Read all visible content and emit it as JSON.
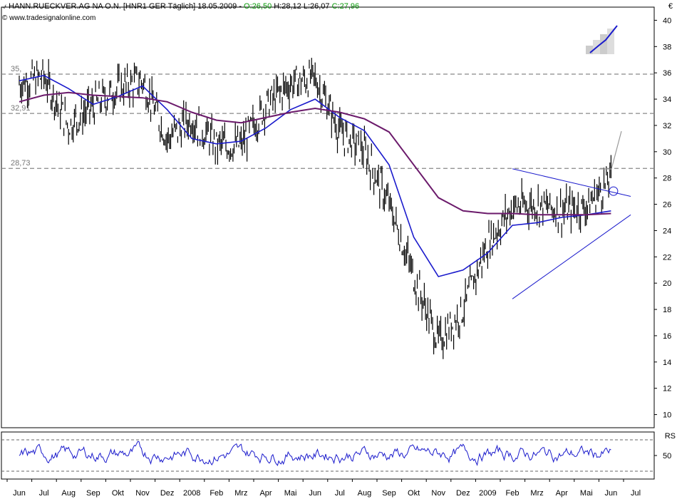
{
  "header": {
    "title": "HANN.RUECKVER.AG NA O.N. [HNR1 GER  Täglich] 18.05.2009 - ",
    "ohlc_open": "O:26,50",
    "ohlc_high": " H:28,12",
    "ohlc_low": " L:26,07",
    "ohlc_close": " C:27,96",
    "source": "www.tradesignalonline.com",
    "currency": "€",
    "lower_panel_label": "RS"
  },
  "colors": {
    "price": "#000000",
    "ma_short": "#1a1acc",
    "ma_long": "#6b1a6b",
    "support_lines": "#888888",
    "trend_lines": "#1a1acc",
    "ohlc_highlight": "#0a9a0a"
  },
  "chart_data": [
    {
      "type": "line",
      "name": "price",
      "y_axis_ticks": [
        10,
        12,
        14,
        16,
        18,
        20,
        22,
        24,
        26,
        28,
        30,
        32,
        34,
        36,
        38,
        40
      ],
      "ylim": [
        9,
        41
      ],
      "x_months": [
        "Jun",
        "Jul",
        "Aug",
        "Sep",
        "Okt",
        "Nov",
        "Dez",
        "2008",
        "Feb",
        "Mrz",
        "Apr",
        "Mai",
        "Jun",
        "Jul",
        "Aug",
        "Sep",
        "Okt",
        "Nov",
        "Dez",
        "2009",
        "Feb",
        "Mrz",
        "Apr",
        "Mai",
        "Jun",
        "Jul"
      ],
      "horizontal_levels": [
        {
          "value": 35.9,
          "label": "35,"
        },
        {
          "value": 32.91,
          "label": "32,91"
        },
        {
          "value": 28.73,
          "label": "28,73"
        }
      ],
      "series": [
        {
          "name": "price",
          "x": [
            0,
            1,
            2,
            3,
            4,
            5,
            6,
            7,
            8,
            9,
            10,
            11,
            12,
            13,
            14,
            15,
            16,
            17,
            18,
            19,
            20,
            21,
            22,
            23,
            24
          ],
          "values": [
            35.2,
            35.7,
            32.0,
            33.5,
            34.8,
            35.4,
            31.0,
            32.5,
            30.5,
            30.5,
            33.5,
            35.2,
            35.6,
            31.5,
            30.0,
            26.0,
            20.5,
            15.5,
            18.0,
            23.0,
            25.8,
            26.0,
            25.5,
            25.8,
            27.96
          ]
        },
        {
          "values": [
            35.4,
            35.8,
            34.8,
            33.6,
            34.2,
            35.0,
            33.2,
            31.0,
            30.6,
            30.8,
            31.8,
            33.2,
            34.0,
            32.6,
            31.6,
            29.0,
            23.5,
            20.5,
            21.0,
            22.3,
            24.4,
            24.6,
            25.0,
            25.2,
            25.5
          ]
        },
        {
          "values": [
            33.8,
            34.3,
            34.5,
            34.3,
            34.2,
            34.1,
            33.8,
            33.0,
            32.4,
            32.2,
            32.6,
            33.0,
            33.3,
            33.0,
            32.5,
            31.5,
            29.0,
            26.5,
            25.5,
            25.3,
            25.3,
            25.2,
            25.2,
            25.2,
            25.3
          ]
        }
      ],
      "trendlines": [
        {
          "name": "upper",
          "from": [
            20.0,
            28.7
          ],
          "to": [
            24.8,
            26.6
          ]
        },
        {
          "name": "lower",
          "from": [
            20.0,
            18.8
          ],
          "to": [
            24.8,
            25.2
          ]
        }
      ]
    },
    {
      "type": "line",
      "name": "RSI",
      "ylim": [
        20,
        80
      ],
      "y_axis_ticks": [
        50
      ],
      "levels": [
        70,
        30
      ]
    }
  ]
}
